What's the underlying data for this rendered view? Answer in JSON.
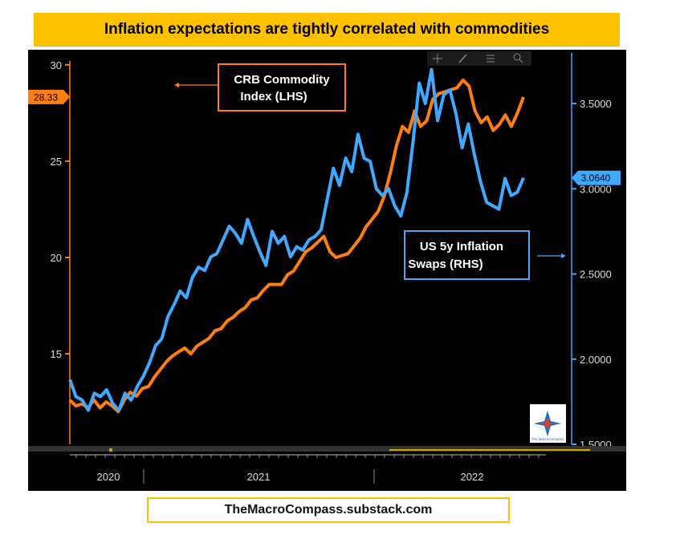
{
  "title": "Inflation expectations are tightly correlated with commodities",
  "footer": "TheMacroCompass.substack.com",
  "toolbar": {
    "icons": [
      "crosshair-icon",
      "pencil-icon",
      "list-icon",
      "zoom-icon"
    ]
  },
  "watermark_text": "The MacroCompass",
  "colors": {
    "crb": "#FF7F0E",
    "swaps": "#3FA9FF",
    "background": "#000000",
    "banner": "#FFC000"
  },
  "chart_data": {
    "type": "line",
    "x_labels": [
      "2020",
      "2021",
      "2022"
    ],
    "y_left": {
      "min": 10.3,
      "max": 30.2,
      "ticks": [
        15,
        20,
        25,
        30
      ],
      "current_value_label": "28.33"
    },
    "y_right": {
      "min": 1.5,
      "max": 3.75,
      "ticks": [
        "1.5000",
        "2.0000",
        "2.5000",
        "3.0000",
        "3.5000"
      ],
      "tick_values": [
        1.5,
        2.0,
        2.5,
        3.0,
        3.5
      ],
      "current_value_label": "3.0640"
    },
    "series": [
      {
        "name": "CRB Commodity Index (LHS)",
        "axis": "left",
        "values": [
          12.6,
          12.3,
          12.4,
          12.2,
          12.6,
          12.2,
          12.5,
          12.3,
          12.0,
          12.6,
          13.0,
          12.8,
          13.2,
          13.3,
          13.8,
          14.2,
          14.6,
          14.9,
          15.1,
          15.3,
          15.0,
          15.4,
          15.6,
          15.8,
          16.2,
          16.3,
          16.7,
          16.9,
          17.2,
          17.4,
          17.8,
          17.9,
          18.3,
          18.6,
          18.6,
          18.6,
          19.1,
          19.3,
          19.8,
          20.3,
          20.5,
          20.8,
          21.1,
          20.3,
          20.0,
          20.1,
          20.2,
          20.6,
          21.0,
          21.6,
          22.0,
          22.4,
          23.2,
          24.4,
          25.8,
          26.8,
          26.5,
          27.6,
          26.8,
          27.1,
          28.2,
          28.5,
          28.6,
          28.7,
          28.8,
          29.2,
          28.9,
          27.6,
          27.0,
          27.3,
          26.6,
          26.9,
          27.4,
          26.8,
          27.5,
          28.33
        ]
      },
      {
        "name": "US 5y Inflation Swaps (RHS)",
        "axis": "right",
        "values": [
          1.88,
          1.78,
          1.76,
          1.7,
          1.8,
          1.78,
          1.82,
          1.74,
          1.7,
          1.8,
          1.76,
          1.84,
          1.9,
          1.98,
          2.08,
          2.12,
          2.25,
          2.32,
          2.4,
          2.36,
          2.48,
          2.54,
          2.52,
          2.6,
          2.62,
          2.7,
          2.78,
          2.74,
          2.68,
          2.82,
          2.72,
          2.63,
          2.55,
          2.75,
          2.68,
          2.72,
          2.6,
          2.66,
          2.64,
          2.7,
          2.72,
          2.76,
          2.94,
          3.12,
          3.02,
          3.18,
          3.1,
          3.32,
          3.18,
          3.16,
          3.0,
          2.96,
          3.0,
          2.9,
          2.84,
          2.98,
          3.28,
          3.62,
          3.5,
          3.7,
          3.4,
          3.55,
          3.58,
          3.44,
          3.24,
          3.38,
          3.2,
          3.04,
          2.92,
          2.9,
          2.88,
          3.06,
          2.96,
          2.98,
          3.064
        ]
      }
    ],
    "annotations": [
      {
        "text": [
          "CRB Commodity",
          "Index (LHS)"
        ],
        "series": "CRB Commodity Index (LHS)"
      },
      {
        "text": [
          "US 5y Inflation",
          "Swaps (RHS)"
        ],
        "series": "US 5y Inflation Swaps (RHS)"
      }
    ]
  }
}
